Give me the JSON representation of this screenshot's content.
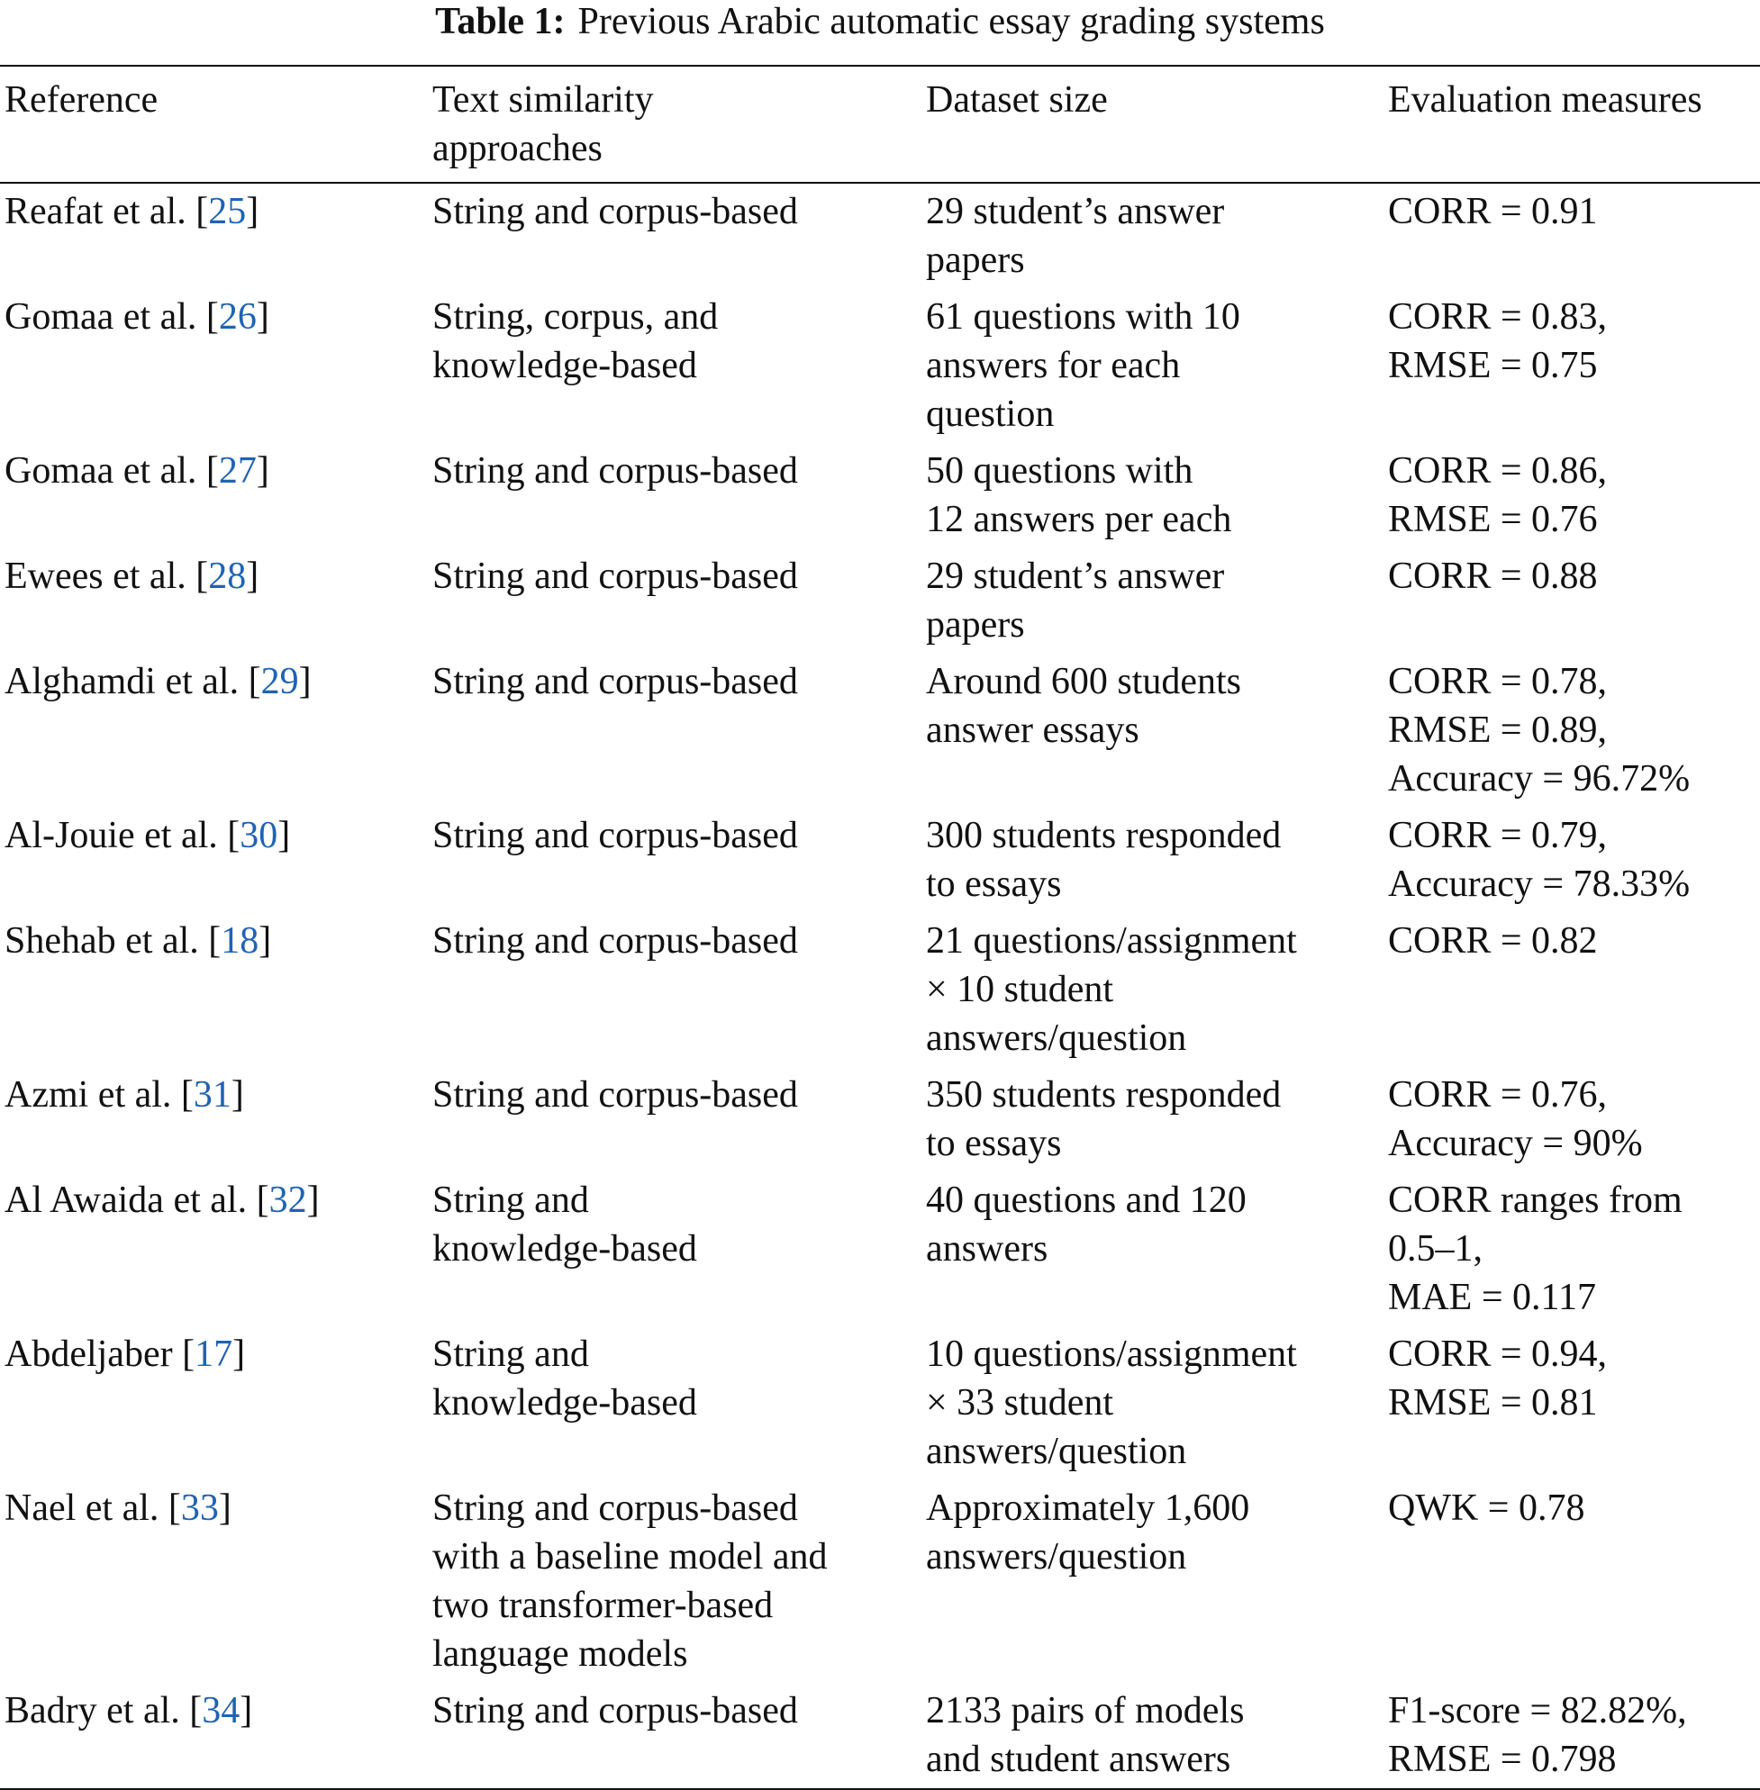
{
  "title": {
    "label": "Table 1:",
    "text": "Previous Arabic automatic essay grading systems"
  },
  "table": {
    "header": [
      [
        "Reference"
      ],
      [
        "Text similarity",
        "approaches"
      ],
      [
        "Dataset size"
      ],
      [
        "Evaluation measures"
      ]
    ],
    "rows": [
      [
        [
          "Reafat et al. [",
          "25",
          "]"
        ],
        [
          "String and corpus-based"
        ],
        [
          "29 student’s answer",
          "papers"
        ],
        [
          "CORR = 0.91"
        ]
      ],
      [
        [
          "Gomaa et al. [",
          "26",
          "]"
        ],
        [
          "String, corpus, and",
          "knowledge-based"
        ],
        [
          "61 questions with 10",
          "answers for each",
          "question"
        ],
        [
          "CORR = 0.83,",
          "RMSE = 0.75"
        ]
      ],
      [
        [
          "Gomaa et al. [",
          "27",
          "]"
        ],
        [
          "String and corpus-based"
        ],
        [
          "50 questions with",
          "12 answers per each"
        ],
        [
          "CORR = 0.86,",
          "RMSE = 0.76"
        ]
      ],
      [
        [
          "Ewees et al. [",
          "28",
          "]"
        ],
        [
          "String and corpus-based"
        ],
        [
          "29 student’s answer",
          "papers"
        ],
        [
          "CORR = 0.88"
        ]
      ],
      [
        [
          "Alghamdi et al. [",
          "29",
          "]"
        ],
        [
          "String and corpus-based"
        ],
        [
          "Around 600 students",
          "answer essays"
        ],
        [
          "CORR = 0.78,",
          "RMSE = 0.89,",
          "Accuracy = 96.72%"
        ]
      ],
      [
        [
          "Al-Jouie et al. [",
          "30",
          "]"
        ],
        [
          "String and corpus-based"
        ],
        [
          "300 students responded",
          "to essays"
        ],
        [
          "CORR = 0.79,",
          "Accuracy = 78.33%"
        ]
      ],
      [
        [
          "Shehab et al. [",
          "18",
          "]"
        ],
        [
          "String and corpus-based"
        ],
        [
          "21 questions/assignment",
          "× 10 student",
          "answers/question"
        ],
        [
          "CORR = 0.82"
        ]
      ],
      [
        [
          "Azmi et al. [",
          "31",
          "]"
        ],
        [
          "String and corpus-based"
        ],
        [
          "350 students responded",
          "to essays"
        ],
        [
          "CORR = 0.76,",
          "Accuracy = 90%"
        ]
      ],
      [
        [
          "Al Awaida et al. [",
          "32",
          "]"
        ],
        [
          "String and",
          "knowledge-based"
        ],
        [
          "40 questions and 120",
          "answers"
        ],
        [
          "CORR ranges from",
          "0.5–1,",
          "MAE = 0.117"
        ]
      ],
      [
        [
          "Abdeljaber [",
          "17",
          "]"
        ],
        [
          "String and",
          "knowledge-based"
        ],
        [
          "10 questions/assignment",
          "× 33 student",
          "answers/question"
        ],
        [
          "CORR = 0.94,",
          "RMSE = 0.81"
        ]
      ],
      [
        [
          "Nael et al. [",
          "33",
          "]"
        ],
        [
          "String and corpus-based",
          "with a baseline model and",
          "two transformer-based",
          "language models"
        ],
        [
          "Approximately 1,600",
          "answers/question"
        ],
        [
          "QWK = 0.78"
        ]
      ],
      [
        [
          "Badry et al. [",
          "34",
          "]"
        ],
        [
          "String and corpus-based"
        ],
        [
          "2133 pairs of models",
          "and student answers"
        ],
        [
          "F1-score = 82.82%,",
          "RMSE = 0.798"
        ]
      ]
    ]
  }
}
